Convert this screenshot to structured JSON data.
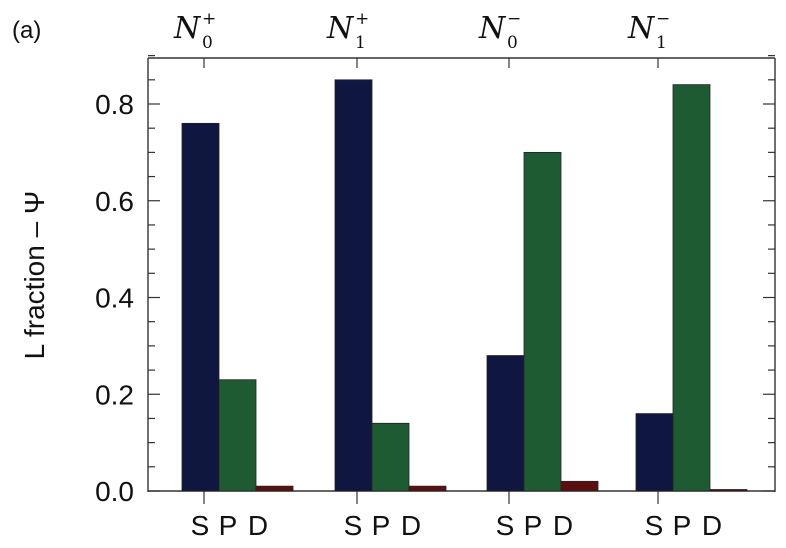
{
  "chart_data": {
    "type": "bar",
    "panel_label": "(a)",
    "ylabel": "L fraction – Ψ",
    "ylim": [
      0,
      0.9
    ],
    "y_ticks": [
      "0.0",
      "0.2",
      "0.4",
      "0.6",
      "0.8"
    ],
    "y_tick_values": [
      0.0,
      0.2,
      0.4,
      0.6,
      0.8
    ],
    "groups": [
      {
        "symbol": "N",
        "sub": "0",
        "sup": "+",
        "categories": [
          "S",
          "P",
          "D"
        ],
        "values": [
          0.76,
          0.23,
          0.01
        ]
      },
      {
        "symbol": "N",
        "sub": "1",
        "sup": "+",
        "categories": [
          "S",
          "P",
          "D"
        ],
        "values": [
          0.85,
          0.14,
          0.01
        ]
      },
      {
        "symbol": "N",
        "sub": "0",
        "sup": "−",
        "categories": [
          "S",
          "P",
          "D"
        ],
        "values": [
          0.28,
          0.7,
          0.02
        ]
      },
      {
        "symbol": "N",
        "sub": "1",
        "sup": "−",
        "categories": [
          "S",
          "P",
          "D"
        ],
        "values": [
          0.16,
          0.84,
          0.003
        ]
      }
    ],
    "colors": {
      "S": "#0f1740",
      "P": "#1e5a32",
      "D": "#5a1010"
    },
    "grid": false,
    "legend": "none"
  }
}
